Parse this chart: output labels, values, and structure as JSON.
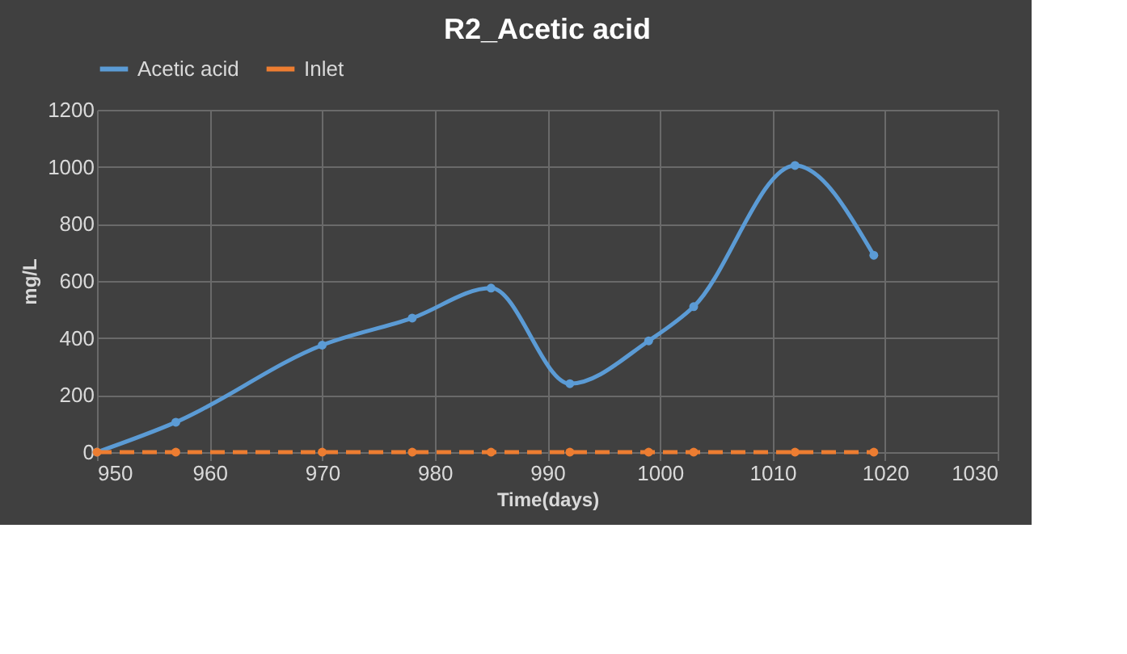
{
  "chart_data": {
    "type": "line",
    "title": "R2_Acetic acid",
    "xlabel": "Time(days)",
    "ylabel": "mg/L",
    "x": [
      950,
      957,
      970,
      978,
      985,
      992,
      999,
      1003,
      1012,
      1019
    ],
    "series": [
      {
        "name": "Acetic acid",
        "color": "#5b9bd5",
        "line_style": "solid",
        "values": [
          0,
          105,
          375,
          470,
          575,
          240,
          390,
          510,
          1005,
          690
        ]
      },
      {
        "name": "Inlet",
        "color": "#ed7d31",
        "line_style": "dashed",
        "values": [
          0,
          0,
          0,
          0,
          0,
          0,
          0,
          0,
          0,
          0
        ]
      }
    ],
    "xlim": [
      950,
      1030
    ],
    "xticks": [
      950,
      960,
      970,
      980,
      990,
      1000,
      1010,
      1020,
      1030
    ],
    "ylim": [
      0,
      1200
    ],
    "yticks": [
      0,
      200,
      400,
      600,
      800,
      1000,
      1200
    ],
    "grid": true,
    "legend": "top",
    "marker": "circle"
  }
}
